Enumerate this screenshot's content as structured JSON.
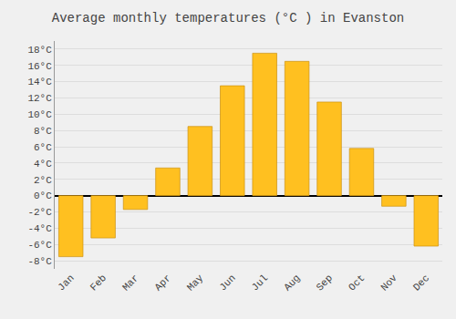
{
  "chart_data": {
    "type": "bar",
    "title": "Average monthly temperatures (°C ) in Evanston",
    "categories": [
      "Jan",
      "Feb",
      "Mar",
      "Apr",
      "May",
      "Jun",
      "Jul",
      "Aug",
      "Sep",
      "Oct",
      "Nov",
      "Dec"
    ],
    "values": [
      -7.5,
      -5.2,
      -1.7,
      3.4,
      8.5,
      13.5,
      17.5,
      16.5,
      11.5,
      5.8,
      -1.3,
      -6.2
    ],
    "color": "#FFC020",
    "ylim": [
      -9,
      19
    ],
    "yticks": [
      {
        "value": -8,
        "label": "-8°C"
      },
      {
        "value": -6,
        "label": "-6°C"
      },
      {
        "value": -4,
        "label": "-4°C"
      },
      {
        "value": -2,
        "label": "-2°C"
      },
      {
        "value": 0,
        "label": "0°C"
      },
      {
        "value": 2,
        "label": "2°C"
      },
      {
        "value": 4,
        "label": "4°C"
      },
      {
        "value": 6,
        "label": "6°C"
      },
      {
        "value": 8,
        "label": "8°C"
      },
      {
        "value": 10,
        "label": "10°C"
      },
      {
        "value": 12,
        "label": "12°C"
      },
      {
        "value": 14,
        "label": "14°C"
      },
      {
        "value": 16,
        "label": "16°C"
      },
      {
        "value": 18,
        "label": "18°C"
      }
    ],
    "grid": true
  }
}
